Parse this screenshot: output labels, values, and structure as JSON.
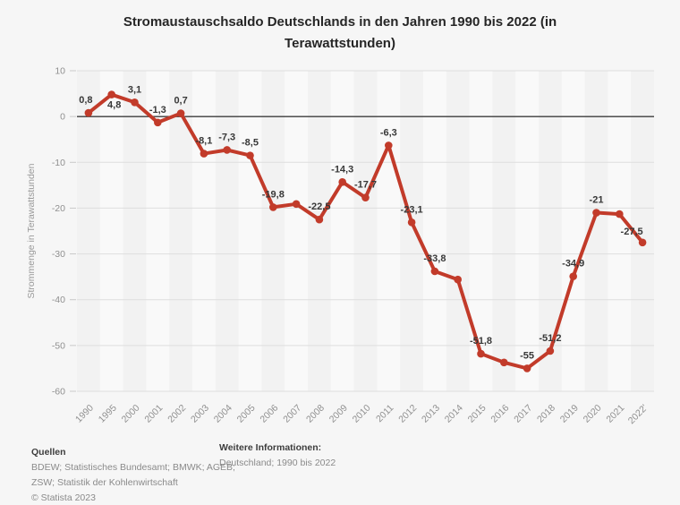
{
  "title": "Stromaustauschsaldo Deutschlands in den Jahren 1990 bis 2022 (in Terawattstunden)",
  "chart_data": {
    "type": "line",
    "title": "Stromaustauschsaldo Deutschlands in den Jahren 1990 bis 2022 (in Terawattstunden)",
    "x": [
      "1990",
      "1995",
      "2000",
      "2001",
      "2002",
      "2003",
      "2004",
      "2005",
      "2006",
      "2007",
      "2008",
      "2009",
      "2010",
      "2011",
      "2012",
      "2013",
      "2014",
      "2015",
      "2016",
      "2017",
      "2018",
      "2019",
      "2020",
      "2021",
      "2022'"
    ],
    "values": [
      0.8,
      4.8,
      3.1,
      -1.3,
      0.7,
      -8.1,
      -7.3,
      -8.5,
      -19.8,
      -19.1,
      -22.5,
      -14.3,
      -17.7,
      -6.3,
      -23.1,
      -33.8,
      -35.6,
      -51.8,
      -53.7,
      -55,
      -51.2,
      -34.9,
      -21,
      -21.3,
      -27.5
    ],
    "point_labels": [
      "0,8",
      "4,8",
      "3,1",
      "-1,3",
      "0,7",
      "-8,1",
      "-7,3",
      "-8,5",
      "-19,8",
      "",
      "-22,5",
      "-14,3",
      "-17,7",
      "-6,3",
      "-23,1",
      "-33,8",
      "",
      "-51,8",
      "",
      "-55",
      "-51,2",
      "-34,9",
      "-21",
      "",
      "-27,5"
    ],
    "label_offsets": {
      "0": [
        -3,
        -11
      ],
      "1": [
        3,
        15
      ],
      "24": [
        -12,
        -9
      ]
    },
    "xlabel": "",
    "ylabel": "Strommenge in Terawattstunden",
    "ylim": [
      -60,
      10
    ],
    "yticks": [
      10,
      0,
      -10,
      -20,
      -30,
      -40,
      -50,
      -60
    ],
    "grid": "horizontal gridlines + alternating vertical year bands",
    "legend": "none",
    "colors": {
      "line": "#c23b2a",
      "zero_line": "#3c3c3c",
      "grid": "#dedede",
      "tick_mark": "#c9c9c9",
      "band_dark": "#f2f2f2",
      "band_light": "#f9f9f9",
      "tick_text": "#909090",
      "axis_title_text": "#999999",
      "label_text": "#383838",
      "background": "#f6f6f6"
    }
  },
  "footer": {
    "sources_heading": "Quellen",
    "sources_line1": "BDEW; Statistisches Bundesamt; BMWK; AGEB;",
    "sources_line2": "ZSW; Statistik der Kohlenwirtschaft",
    "copyright": "© Statista 2023",
    "info_heading": "Weitere Informationen:",
    "info_line": "Deutschland; 1990 bis 2022"
  }
}
